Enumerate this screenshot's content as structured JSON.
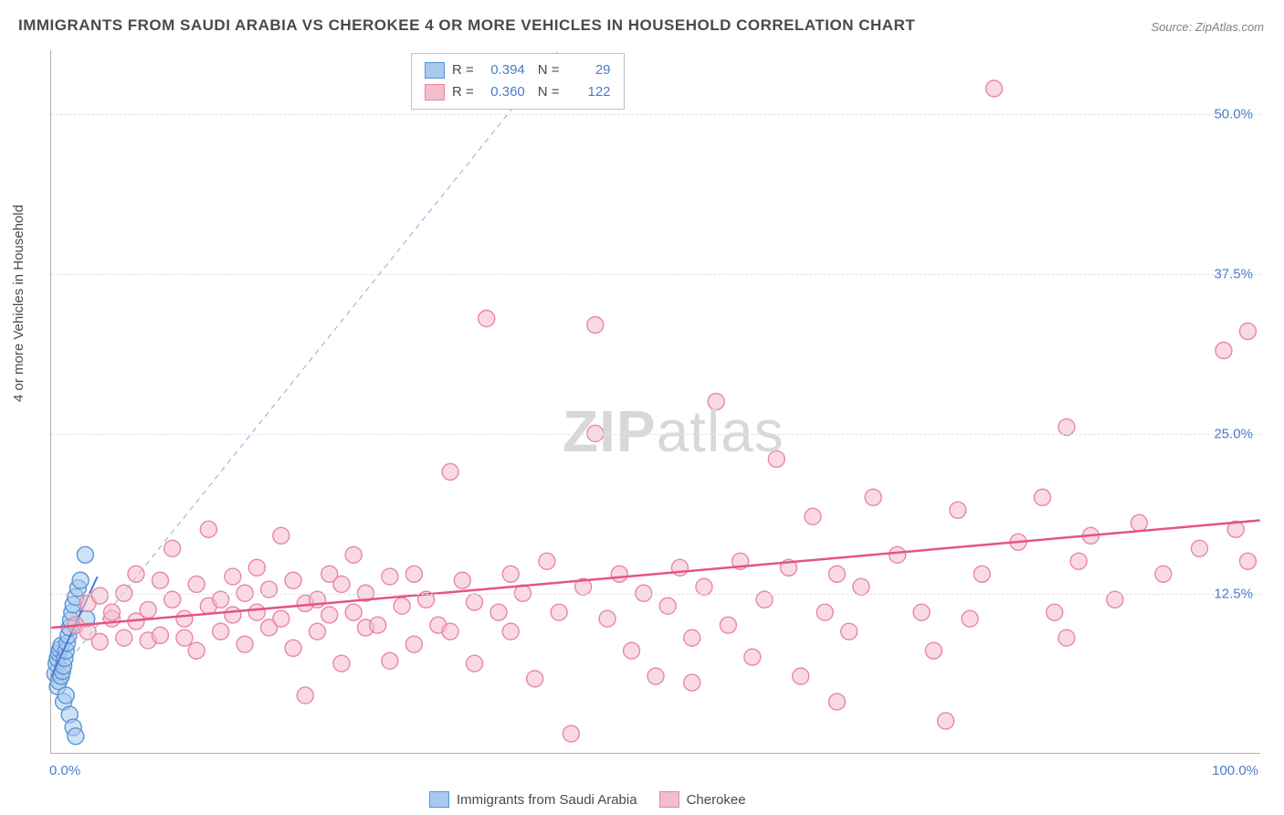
{
  "title": "IMMIGRANTS FROM SAUDI ARABIA VS CHEROKEE 4 OR MORE VEHICLES IN HOUSEHOLD CORRELATION CHART",
  "source": "Source: ZipAtlas.com",
  "watermark_zip": "ZIP",
  "watermark_atlas": "atlas",
  "chart": {
    "type": "scatter",
    "xlim": [
      0,
      100
    ],
    "ylim": [
      0,
      55
    ],
    "y_axis_label": "4 or more Vehicles in Household",
    "y_ticks": [
      12.5,
      25.0,
      37.5,
      50.0
    ],
    "y_tick_labels": [
      "12.5%",
      "25.0%",
      "37.5%",
      "50.0%"
    ],
    "x_tick_left": "0.0%",
    "x_tick_right": "100.0%",
    "background_color": "#ffffff",
    "grid_color": "#e0e0e0",
    "marker_radius": 9,
    "marker_stroke_width": 1.4,
    "series": [
      {
        "name": "Immigrants from Saudi Arabia",
        "fill_color": "#a8c9ee",
        "stroke_color": "#5a94d6",
        "fill_opacity": 0.55,
        "R": "0.394",
        "N": "29",
        "regression": {
          "x1": 0,
          "y1": 6.0,
          "x2": 3.8,
          "y2": 13.8,
          "color": "#4a7bd0",
          "width": 2
        },
        "reference_line": {
          "x1": 0,
          "y1": 5.5,
          "x2": 42,
          "y2": 55,
          "color": "#9fb8e0",
          "dash": "6,5",
          "width": 1.2
        },
        "points": [
          [
            0.3,
            6.2
          ],
          [
            0.4,
            7.0
          ],
          [
            0.5,
            7.4
          ],
          [
            0.6,
            7.8
          ],
          [
            0.7,
            8.1
          ],
          [
            0.8,
            8.4
          ],
          [
            0.5,
            5.2
          ],
          [
            0.6,
            5.6
          ],
          [
            0.8,
            6.0
          ],
          [
            0.9,
            6.4
          ],
          [
            1.0,
            6.8
          ],
          [
            1.1,
            7.4
          ],
          [
            1.2,
            8.0
          ],
          [
            1.3,
            8.6
          ],
          [
            1.4,
            9.2
          ],
          [
            1.5,
            9.8
          ],
          [
            1.6,
            10.4
          ],
          [
            1.7,
            11.0
          ],
          [
            1.8,
            11.6
          ],
          [
            2.0,
            12.2
          ],
          [
            2.2,
            12.9
          ],
          [
            2.4,
            13.5
          ],
          [
            2.8,
            15.5
          ],
          [
            1.0,
            4.0
          ],
          [
            1.2,
            4.5
          ],
          [
            1.5,
            3.0
          ],
          [
            1.8,
            2.0
          ],
          [
            2.0,
            1.3
          ],
          [
            2.9,
            10.5
          ]
        ]
      },
      {
        "name": "Cherokee",
        "fill_color": "#f5bccb",
        "stroke_color": "#e986a3",
        "fill_opacity": 0.55,
        "R": "0.360",
        "N": "122",
        "regression": {
          "x1": 0,
          "y1": 9.8,
          "x2": 100,
          "y2": 18.2,
          "color": "#e55384",
          "width": 2.5
        },
        "points": [
          [
            2,
            10.0
          ],
          [
            3,
            11.7
          ],
          [
            3,
            9.5
          ],
          [
            4,
            12.3
          ],
          [
            4,
            8.7
          ],
          [
            5,
            10.5
          ],
          [
            5,
            11.0
          ],
          [
            6,
            9.0
          ],
          [
            6,
            12.5
          ],
          [
            7,
            10.3
          ],
          [
            7,
            14.0
          ],
          [
            8,
            11.2
          ],
          [
            8,
            8.8
          ],
          [
            9,
            13.5
          ],
          [
            9,
            9.2
          ],
          [
            10,
            12.0
          ],
          [
            10,
            16.0
          ],
          [
            11,
            10.5
          ],
          [
            11,
            9.0
          ],
          [
            12,
            13.2
          ],
          [
            12,
            8.0
          ],
          [
            13,
            11.5
          ],
          [
            13,
            17.5
          ],
          [
            14,
            9.5
          ],
          [
            14,
            12.0
          ],
          [
            15,
            10.8
          ],
          [
            15,
            13.8
          ],
          [
            16,
            12.5
          ],
          [
            16,
            8.5
          ],
          [
            17,
            11.0
          ],
          [
            17,
            14.5
          ],
          [
            18,
            9.8
          ],
          [
            18,
            12.8
          ],
          [
            19,
            10.5
          ],
          [
            19,
            17.0
          ],
          [
            20,
            13.5
          ],
          [
            20,
            8.2
          ],
          [
            21,
            11.7
          ],
          [
            21,
            4.5
          ],
          [
            22,
            12.0
          ],
          [
            22,
            9.5
          ],
          [
            23,
            10.8
          ],
          [
            23,
            14.0
          ],
          [
            24,
            13.2
          ],
          [
            24,
            7.0
          ],
          [
            25,
            11.0
          ],
          [
            25,
            15.5
          ],
          [
            26,
            9.8
          ],
          [
            26,
            12.5
          ],
          [
            27,
            10.0
          ],
          [
            28,
            13.8
          ],
          [
            28,
            7.2
          ],
          [
            29,
            11.5
          ],
          [
            30,
            14.0
          ],
          [
            30,
            8.5
          ],
          [
            31,
            12.0
          ],
          [
            32,
            10.0
          ],
          [
            33,
            22.0
          ],
          [
            33,
            9.5
          ],
          [
            34,
            13.5
          ],
          [
            35,
            7.0
          ],
          [
            35,
            11.8
          ],
          [
            36,
            34.0
          ],
          [
            37,
            11.0
          ],
          [
            38,
            14.0
          ],
          [
            38,
            9.5
          ],
          [
            39,
            12.5
          ],
          [
            40,
            5.8
          ],
          [
            41,
            15.0
          ],
          [
            42,
            11.0
          ],
          [
            43,
            1.5
          ],
          [
            44,
            13.0
          ],
          [
            45,
            25.0
          ],
          [
            45,
            33.5
          ],
          [
            46,
            10.5
          ],
          [
            47,
            14.0
          ],
          [
            48,
            8.0
          ],
          [
            49,
            12.5
          ],
          [
            50,
            6.0
          ],
          [
            51,
            11.5
          ],
          [
            52,
            14.5
          ],
          [
            53,
            9.0
          ],
          [
            53,
            5.5
          ],
          [
            54,
            13.0
          ],
          [
            55,
            27.5
          ],
          [
            56,
            10.0
          ],
          [
            57,
            15.0
          ],
          [
            58,
            7.5
          ],
          [
            59,
            12.0
          ],
          [
            60,
            23.0
          ],
          [
            61,
            14.5
          ],
          [
            62,
            6.0
          ],
          [
            63,
            18.5
          ],
          [
            64,
            11.0
          ],
          [
            65,
            14.0
          ],
          [
            65,
            4.0
          ],
          [
            66,
            9.5
          ],
          [
            67,
            13.0
          ],
          [
            68,
            20.0
          ],
          [
            70,
            15.5
          ],
          [
            72,
            11.0
          ],
          [
            73,
            8.0
          ],
          [
            74,
            2.5
          ],
          [
            75,
            19.0
          ],
          [
            76,
            10.5
          ],
          [
            77,
            14.0
          ],
          [
            78,
            52.0
          ],
          [
            80,
            16.5
          ],
          [
            82,
            20.0
          ],
          [
            83,
            11.0
          ],
          [
            84,
            9.0
          ],
          [
            84,
            25.5
          ],
          [
            85,
            15.0
          ],
          [
            86,
            17.0
          ],
          [
            88,
            12.0
          ],
          [
            90,
            18.0
          ],
          [
            92,
            14.0
          ],
          [
            95,
            16.0
          ],
          [
            97,
            31.5
          ],
          [
            98,
            17.5
          ],
          [
            99,
            15.0
          ],
          [
            99,
            33.0
          ]
        ]
      }
    ]
  },
  "legend_bottom": [
    {
      "label": "Immigrants from Saudi Arabia",
      "fill": "#a8c9ee",
      "stroke": "#5a94d6"
    },
    {
      "label": "Cherokee",
      "fill": "#f5bccb",
      "stroke": "#e986a3"
    }
  ]
}
